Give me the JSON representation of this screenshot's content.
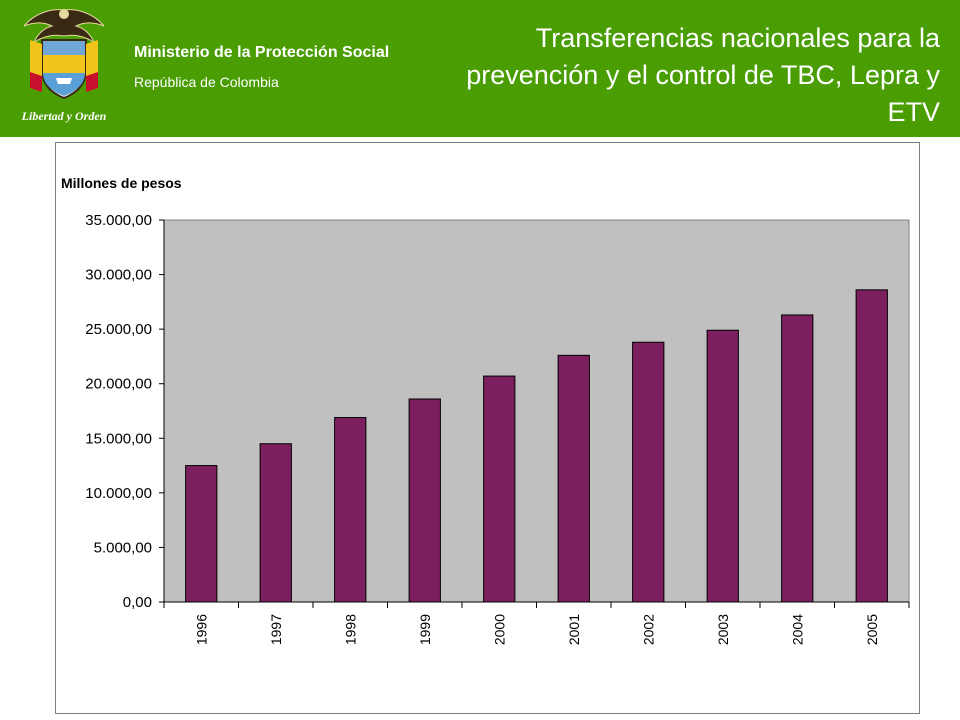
{
  "header": {
    "org_name": "Ministerio de la Protección Social",
    "org_country": "República de Colombia",
    "logo_caption": "Libertad y Orden",
    "slide_title": "Transferencias nacionales para la prevención  y el control de TBC, Lepra y ETV",
    "background_color": "#4a9e04"
  },
  "chart_data": {
    "type": "bar",
    "title": "",
    "ylabel": "Millones de pesos",
    "xlabel": "",
    "categories": [
      "1996",
      "1997",
      "1998",
      "1999",
      "2000",
      "2001",
      "2002",
      "2003",
      "2004",
      "2005"
    ],
    "values": [
      12500,
      14500,
      16900,
      18600,
      20700,
      22600,
      23800,
      24900,
      26300,
      28600
    ],
    "ylim": [
      0,
      35000
    ],
    "yticks": [
      0,
      5000,
      10000,
      15000,
      20000,
      25000,
      30000,
      35000
    ],
    "ytick_labels": [
      "0,00",
      "5.000,00",
      "10.000,00",
      "15.000,00",
      "20.000,00",
      "25.000,00",
      "30.000,00",
      "35.000,00"
    ],
    "bar_color": "#7b1f5e",
    "plot_bg": "#c0c0c0",
    "grid": false,
    "legend": "none"
  }
}
